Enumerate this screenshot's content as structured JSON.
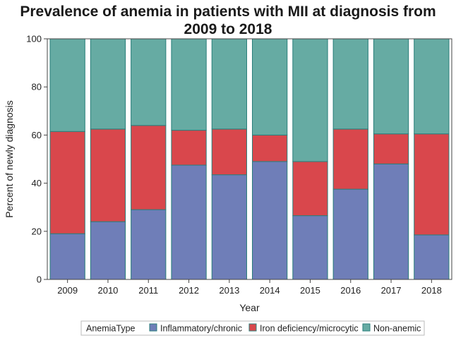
{
  "chart_data": {
    "type": "bar",
    "stacked": true,
    "title_line1": "Prevalence of anemia in patients with MII at diagnosis from",
    "title_line2": "2009 to 2018",
    "xlabel": "Year",
    "ylabel": "Percent of newly diagnosis",
    "ylim": [
      0,
      100
    ],
    "yticks": [
      "0",
      "20",
      "40",
      "60",
      "80",
      "100"
    ],
    "grid": false,
    "categories": [
      "2009",
      "2010",
      "2011",
      "2012",
      "2013",
      "2014",
      "2015",
      "2016",
      "2017",
      "2018"
    ],
    "legend_title": "AnemiaType",
    "legend_position": "bottom",
    "series": [
      {
        "name": "Inflammatory/chronic",
        "color": "#6f7eb8",
        "values": [
          19,
          24,
          29,
          47.5,
          43.5,
          49,
          26.5,
          37.5,
          48,
          18.5
        ]
      },
      {
        "name": "Iron deficiency/microcytic",
        "color": "#d9474c",
        "values": [
          42.5,
          38.5,
          35,
          14.5,
          19,
          11,
          22.5,
          25,
          12.5,
          42
        ]
      },
      {
        "name": "Non-anemic",
        "color": "#66aba3",
        "values": [
          38.5,
          37.5,
          36,
          38,
          37.5,
          40,
          51,
          37.5,
          39.5,
          39.5
        ]
      }
    ],
    "colors": {
      "bar_outline": "#2a7f7b",
      "axis": "#444444"
    }
  }
}
